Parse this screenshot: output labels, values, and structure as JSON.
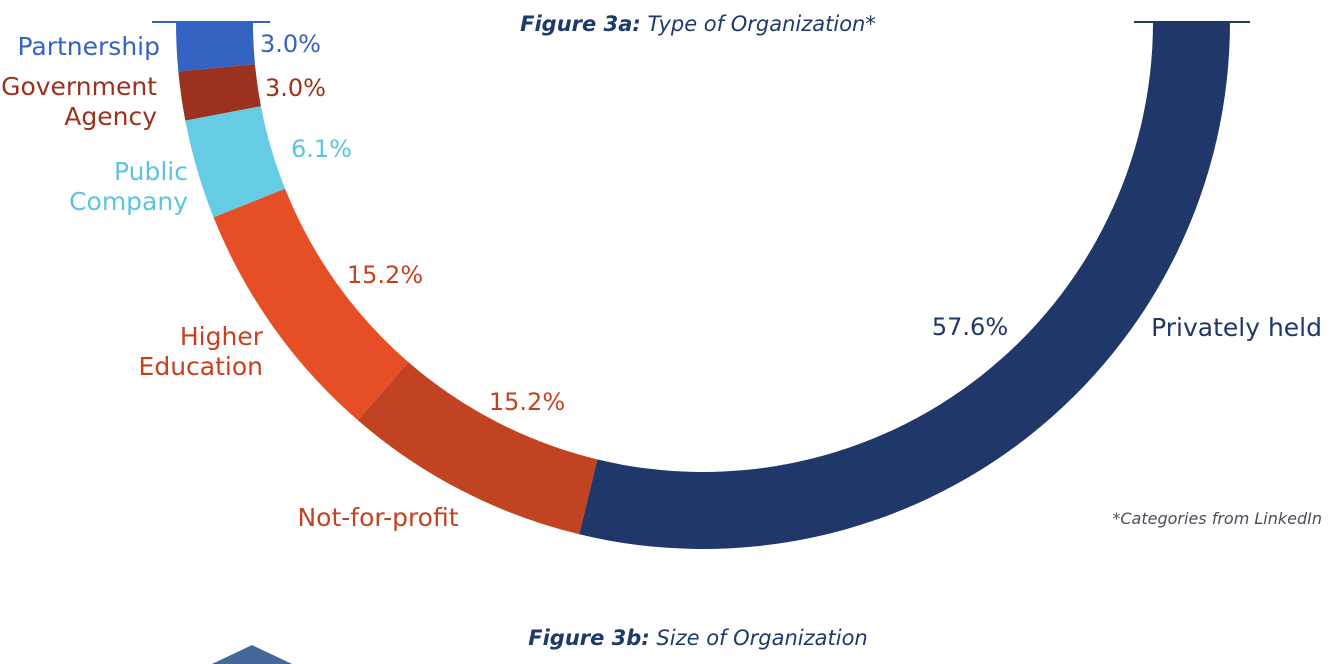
{
  "figure_a": {
    "number": "Figure 3a:",
    "title": "Type of Organization*"
  },
  "figure_b": {
    "number": "Figure 3b:",
    "title": "Size of Organization"
  },
  "footnote": "*Categories from LinkedIn",
  "chart_data": {
    "type": "pie",
    "variant": "half-donut",
    "title": "Type of Organization*",
    "slices": [
      {
        "name": "Partnership",
        "value": 3.0,
        "label": "3.0%",
        "color": "#3563c2"
      },
      {
        "name": "Government Agency",
        "value": 3.0,
        "label": "3.0%",
        "color": "#9b321f"
      },
      {
        "name": "Public Company",
        "value": 6.1,
        "label": "6.1%",
        "color": "#66cce3"
      },
      {
        "name": "Higher Education",
        "value": 15.2,
        "label": "15.2%",
        "color": "#e64f26"
      },
      {
        "name": "Not-for-profit",
        "value": 15.2,
        "label": "15.2%",
        "color": "#c24321"
      },
      {
        "name": "Privately held",
        "value": 57.6,
        "label": "57.6%",
        "color": "#1f3769"
      }
    ]
  },
  "colors": {
    "title": "#1e3a6b",
    "footnote": "#4a4f5a",
    "partnership_text": "#3563c2",
    "government_text": "#9b321f",
    "public_text": "#5cc4dd",
    "higher_ed_text": "#c8401e",
    "not_for_profit_text": "#c24321",
    "private_text": "#1f3769",
    "next_figure_shape": "#46679a"
  }
}
